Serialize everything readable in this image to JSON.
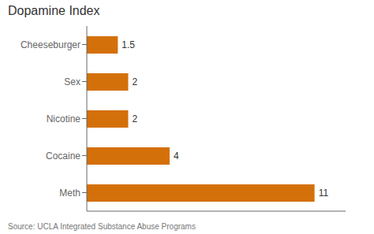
{
  "chart_data": {
    "type": "bar",
    "title": "Dopamine Index",
    "categories": [
      "Cheeseburger",
      "Sex",
      "Nicotine",
      "Cocaine",
      "Meth"
    ],
    "values": [
      1.5,
      2,
      2,
      4,
      11
    ],
    "color": "#D4700A",
    "orientation": "horizontal",
    "data_labels": true,
    "tick_labels": "y",
    "xlim": [
      0,
      12.5
    ],
    "annotations": [
      "Source: UCLA Integrated Substance Abuse Programs"
    ]
  }
}
